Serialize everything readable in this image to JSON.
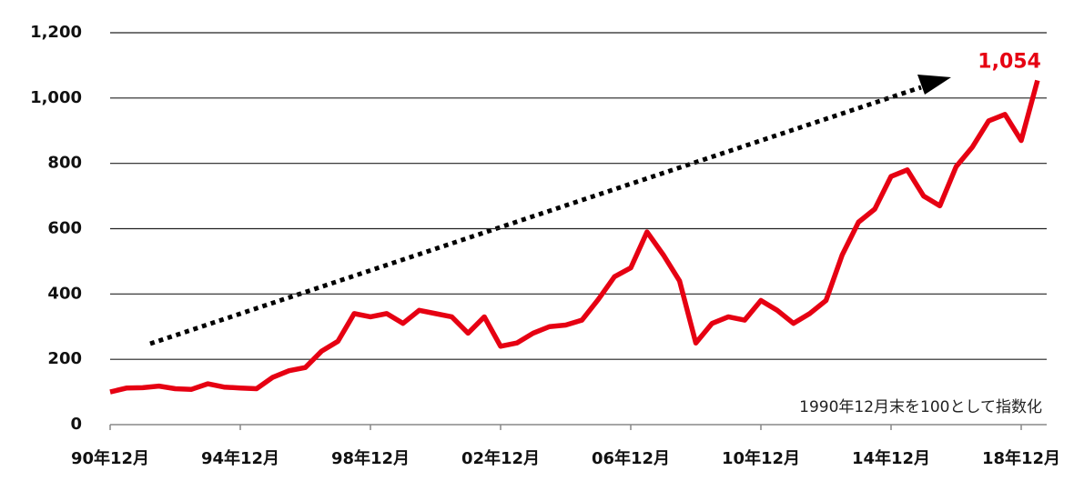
{
  "chart_data": {
    "type": "line",
    "annotation": "1990年12月末を100として指数化",
    "categories": [
      "90年12月",
      null,
      null,
      null,
      null,
      null,
      null,
      null,
      "94年12月",
      null,
      null,
      null,
      null,
      null,
      null,
      null,
      "98年12月",
      null,
      null,
      null,
      null,
      null,
      null,
      null,
      "02年12月",
      null,
      null,
      null,
      null,
      null,
      null,
      null,
      "06年12月",
      null,
      null,
      null,
      null,
      null,
      null,
      null,
      "10年12月",
      null,
      null,
      null,
      null,
      null,
      null,
      null,
      "14年12月",
      null,
      null,
      null,
      null,
      null,
      null,
      null,
      "18年12月",
      null
    ],
    "series": [
      {
        "color": "#e60012",
        "values": [
          100,
          112,
          113,
          118,
          110,
          108,
          125,
          115,
          112,
          110,
          145,
          165,
          175,
          225,
          255,
          340,
          330,
          340,
          310,
          350,
          340,
          330,
          280,
          330,
          240,
          250,
          280,
          300,
          305,
          320,
          383,
          453,
          480,
          590,
          520,
          440,
          250,
          310,
          330,
          320,
          380,
          350,
          310,
          340,
          380,
          520,
          620,
          660,
          760,
          780,
          700,
          670,
          790,
          850,
          930,
          950,
          870,
          1054
        ],
        "value_labels": [
          null,
          null,
          null,
          null,
          null,
          null,
          null,
          null,
          null,
          null,
          null,
          null,
          null,
          null,
          null,
          null,
          null,
          null,
          null,
          null,
          null,
          null,
          null,
          null,
          null,
          null,
          null,
          null,
          null,
          null,
          null,
          null,
          null,
          null,
          null,
          null,
          null,
          null,
          null,
          null,
          null,
          null,
          null,
          null,
          null,
          null,
          null,
          null,
          null,
          null,
          null,
          null,
          null,
          null,
          null,
          null,
          null,
          "1,054"
        ]
      }
    ],
    "ylim": [
      0,
      1200
    ],
    "yticks": [
      0,
      200,
      400,
      600,
      800,
      {
        "value": 1000,
        "label": "1,000"
      },
      {
        "value": 1200,
        "label": "1,200"
      }
    ],
    "grid": true
  }
}
